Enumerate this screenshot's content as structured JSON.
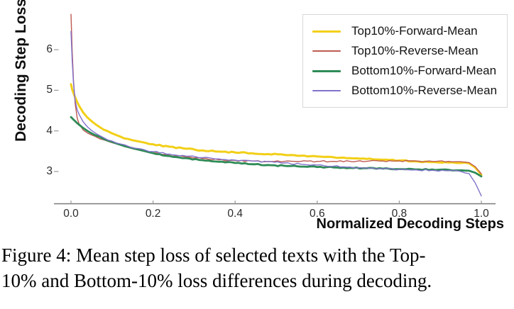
{
  "caption": {
    "lines": [
      "Figure 4: Mean step loss of selected texts with the Top-",
      "10% and Bottom-10% loss differences during decoding."
    ]
  },
  "chart_data": {
    "type": "line",
    "title": "",
    "xlabel": "Normalized Decoding Steps",
    "ylabel": "Decoding Step Loss",
    "xlim": [
      -0.02,
      1.04
    ],
    "ylim": [
      2.2,
      7.0
    ],
    "grid": false,
    "legend_position": "upper right",
    "axis_color": "#7a7a7a",
    "tick_color": "#9a9a9a",
    "xticks": [
      {
        "v": 0.0,
        "label": "0.0"
      },
      {
        "v": 0.2,
        "label": "0.2"
      },
      {
        "v": 0.4,
        "label": "0.4"
      },
      {
        "v": 0.6,
        "label": "0.6"
      },
      {
        "v": 0.8,
        "label": "0.8"
      },
      {
        "v": 1.0,
        "label": "1.0"
      }
    ],
    "yticks": [
      {
        "v": 3,
        "label": "3"
      },
      {
        "v": 4,
        "label": "4"
      },
      {
        "v": 5,
        "label": "5"
      },
      {
        "v": 6,
        "label": "6"
      }
    ],
    "x": [
      0,
      0.003,
      0.006,
      0.01,
      0.015,
      0.02,
      0.03,
      0.04,
      0.05,
      0.06,
      0.08,
      0.1,
      0.12,
      0.14,
      0.16,
      0.18,
      0.2,
      0.24,
      0.28,
      0.32,
      0.36,
      0.4,
      0.44,
      0.48,
      0.52,
      0.56,
      0.6,
      0.64,
      0.68,
      0.72,
      0.76,
      0.8,
      0.84,
      0.88,
      0.92,
      0.95,
      0.97,
      0.985,
      1.0
    ],
    "series": [
      {
        "name": "Top10%-Forward-Mean",
        "color": "#F2CF17",
        "width": 3,
        "values": [
          5.15,
          5.02,
          4.93,
          4.83,
          4.71,
          4.61,
          4.45,
          4.33,
          4.24,
          4.16,
          4.03,
          3.94,
          3.86,
          3.8,
          3.75,
          3.71,
          3.67,
          3.61,
          3.56,
          3.52,
          3.49,
          3.47,
          3.45,
          3.43,
          3.41,
          3.39,
          3.37,
          3.35,
          3.33,
          3.31,
          3.29,
          3.27,
          3.25,
          3.23,
          3.22,
          3.21,
          3.2,
          3.1,
          2.92
        ]
      },
      {
        "name": "Top10%-Reverse-Mean",
        "color": "#BE5A52",
        "width": 1.4,
        "values": [
          6.87,
          5.95,
          5.25,
          4.68,
          4.32,
          4.16,
          4.02,
          3.95,
          3.9,
          3.86,
          3.78,
          3.71,
          3.65,
          3.6,
          3.55,
          3.5,
          3.46,
          3.4,
          3.36,
          3.32,
          3.29,
          3.27,
          3.26,
          3.25,
          3.25,
          3.25,
          3.25,
          3.25,
          3.25,
          3.25,
          3.26,
          3.26,
          3.26,
          3.25,
          3.25,
          3.24,
          3.22,
          3.12,
          2.94
        ]
      },
      {
        "name": "Bottom10%-Forward-Mean",
        "color": "#2E8B57",
        "width": 2.8,
        "values": [
          4.34,
          4.31,
          4.28,
          4.24,
          4.19,
          4.15,
          4.07,
          4.0,
          3.94,
          3.89,
          3.8,
          3.73,
          3.66,
          3.6,
          3.55,
          3.5,
          3.45,
          3.38,
          3.33,
          3.28,
          3.24,
          3.21,
          3.18,
          3.16,
          3.14,
          3.12,
          3.11,
          3.1,
          3.09,
          3.08,
          3.07,
          3.06,
          3.05,
          3.05,
          3.04,
          3.03,
          3.02,
          2.97,
          2.88
        ]
      },
      {
        "name": "Bottom10%-Reverse-Mean",
        "color": "#8172CB",
        "width": 1.4,
        "values": [
          6.45,
          5.72,
          5.18,
          4.75,
          4.52,
          4.4,
          4.22,
          4.1,
          4.01,
          3.94,
          3.83,
          3.75,
          3.68,
          3.62,
          3.57,
          3.53,
          3.49,
          3.43,
          3.38,
          3.34,
          3.31,
          3.28,
          3.26,
          3.24,
          3.21,
          3.18,
          3.16,
          3.13,
          3.11,
          3.09,
          3.07,
          3.05,
          3.04,
          3.03,
          3.02,
          3.0,
          2.95,
          2.72,
          2.4
        ]
      }
    ]
  }
}
